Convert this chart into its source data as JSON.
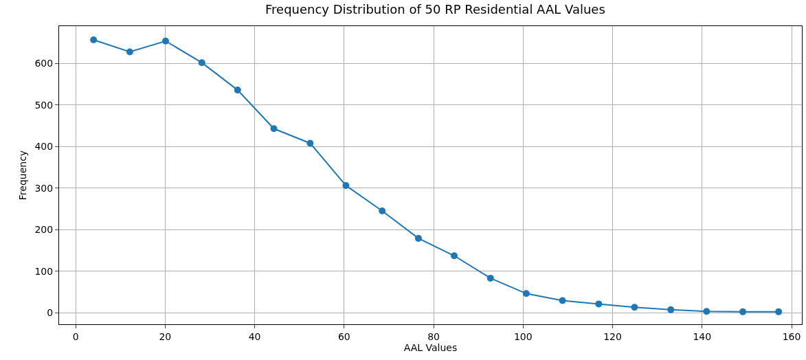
{
  "chart_data": {
    "type": "line",
    "title": "Frequency Distribution of 50 RP Residential AAL Values",
    "xlabel": "AAL Values",
    "ylabel": "Frequency",
    "x": [
      4,
      12.1,
      20.1,
      28.2,
      36.2,
      44.3,
      52.4,
      60.4,
      68.5,
      76.6,
      84.6,
      92.7,
      100.7,
      108.8,
      116.9,
      124.9,
      133,
      141,
      149.1,
      157.1
    ],
    "series": [
      {
        "color": "#1f77b4",
        "values": [
          657,
          628,
          654,
          602,
          536,
          443,
          408,
          306,
          245,
          179,
          137,
          83,
          46,
          29,
          21,
          13,
          7,
          3,
          2,
          2
        ]
      }
    ],
    "xlim": [
      -3.7,
      162.3
    ],
    "ylim": [
      -28,
      690
    ],
    "xticks": [
      0,
      20,
      40,
      60,
      80,
      100,
      120,
      140,
      160
    ],
    "yticks": [
      0,
      100,
      200,
      300,
      400,
      500,
      600
    ],
    "grid": true,
    "marker": "circle",
    "line_style": "solid"
  }
}
